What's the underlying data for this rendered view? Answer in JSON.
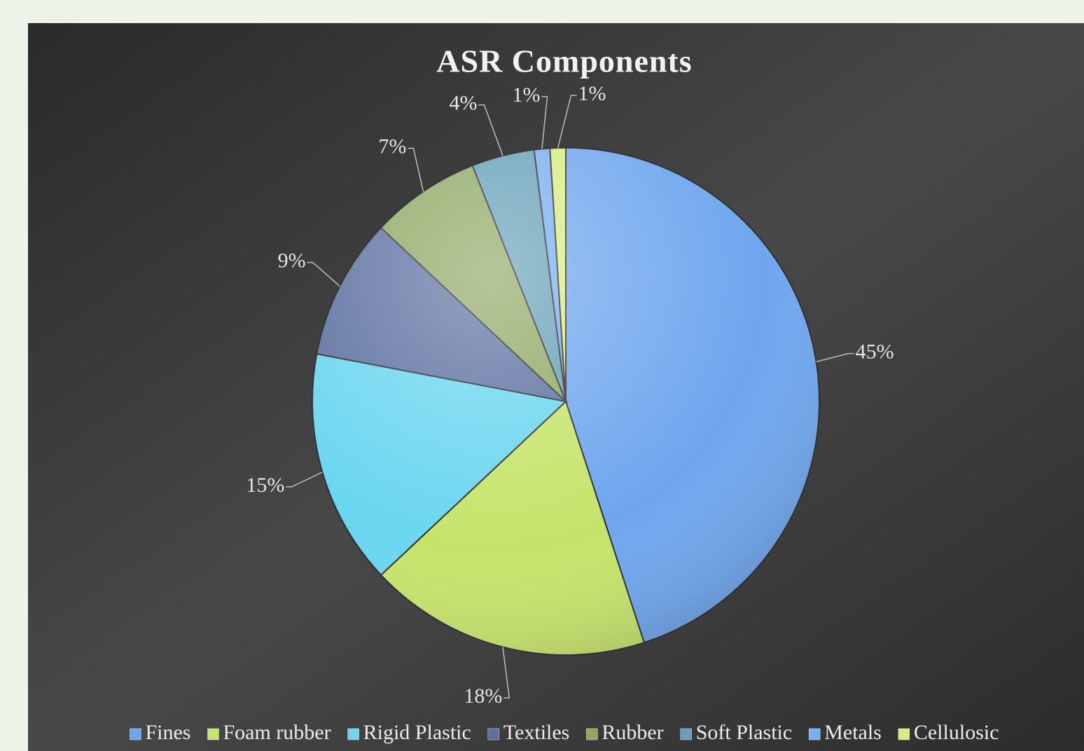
{
  "chart_data": {
    "type": "pie",
    "title": "ASR Components",
    "categories": [
      "Fines",
      "Foam rubber",
      "Rigid Plastic",
      "Textiles",
      "Rubber",
      "Soft Plastic",
      "Metals",
      "Cellulosic"
    ],
    "values": [
      45,
      18,
      15,
      9,
      7,
      4,
      1,
      1
    ],
    "value_labels": [
      "45%",
      "18%",
      "15%",
      "9%",
      "7%",
      "4%",
      "1%",
      "1%"
    ],
    "colors": [
      "#6ea6ee",
      "#c6e46a",
      "#6ad6f0",
      "#5c70a0",
      "#8ea862",
      "#66a0b8",
      "#78aef0",
      "#d8ec82"
    ],
    "legend": "bottom"
  }
}
